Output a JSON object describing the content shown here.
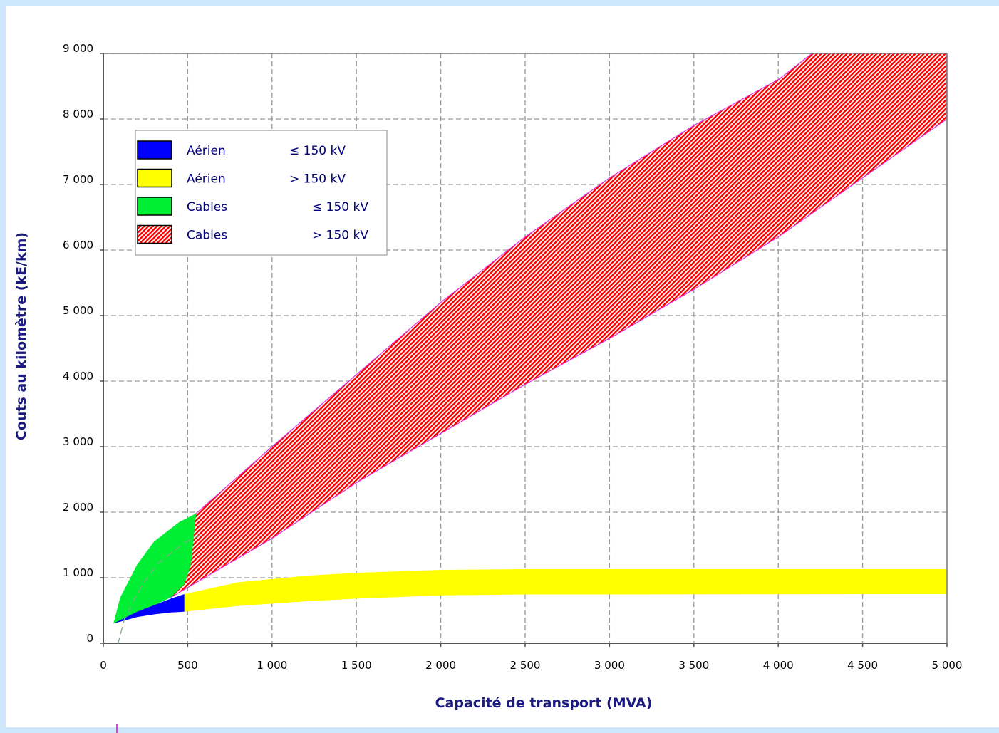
{
  "chart_data": {
    "type": "area",
    "xlabel": "Capacité de transport (MVA)",
    "ylabel": "Couts au kilomètre (kE/km)",
    "xlim": [
      0,
      5000
    ],
    "ylim": [
      0,
      9000
    ],
    "x_ticks": [
      "0",
      "500",
      "1 000",
      "1 500",
      "2 000",
      "2 500",
      "3 000",
      "3 500",
      "4 000",
      "4 500",
      "5 000"
    ],
    "y_ticks": [
      "0",
      "1 000",
      "2 000",
      "3 000",
      "4 000",
      "5 000",
      "6 000",
      "7 000",
      "8 000",
      "9 000"
    ],
    "grid": true,
    "legend_position": "top-left",
    "legend": [
      {
        "label": "Aérien",
        "condition": "≤ 150 kV",
        "color": "#0000ff",
        "pattern": "solid"
      },
      {
        "label": "Aérien",
        "condition": "> 150 kV",
        "color": "#ffff00",
        "pattern": "solid"
      },
      {
        "label": "Cables",
        "condition": "≤ 150 kV",
        "color": "#00ee33",
        "pattern": "solid"
      },
      {
        "label": "Cables",
        "condition": "> 150 kV",
        "color": "#ff0000",
        "pattern": "hatched"
      }
    ],
    "series": [
      {
        "name": "Aérien ≤ 150 kV",
        "color": "#0000ff",
        "upper": [
          [
            60,
            300
          ],
          [
            200,
            480
          ],
          [
            300,
            580
          ],
          [
            400,
            680
          ],
          [
            480,
            750
          ]
        ],
        "lower": [
          [
            60,
            300
          ],
          [
            200,
            400
          ],
          [
            300,
            440
          ],
          [
            400,
            470
          ],
          [
            480,
            480
          ]
        ]
      },
      {
        "name": "Aérien > 150 kV",
        "color": "#ffff00",
        "upper": [
          [
            480,
            750
          ],
          [
            800,
            930
          ],
          [
            1200,
            1030
          ],
          [
            1500,
            1075
          ],
          [
            2000,
            1120
          ],
          [
            2500,
            1130
          ],
          [
            5000,
            1130
          ]
        ],
        "lower": [
          [
            480,
            480
          ],
          [
            800,
            570
          ],
          [
            1200,
            640
          ],
          [
            1500,
            680
          ],
          [
            2000,
            730
          ],
          [
            2500,
            745
          ],
          [
            5000,
            750
          ]
        ]
      },
      {
        "name": "Cables ≤ 150 kV",
        "color": "#00ee33",
        "upper": [
          [
            60,
            300
          ],
          [
            100,
            700
          ],
          [
            200,
            1200
          ],
          [
            300,
            1550
          ],
          [
            450,
            1850
          ],
          [
            550,
            1980
          ]
        ],
        "lower": [
          [
            60,
            300
          ],
          [
            200,
            450
          ],
          [
            400,
            700
          ],
          [
            480,
            900
          ],
          [
            520,
            1200
          ],
          [
            550,
            1980
          ]
        ]
      },
      {
        "name": "Cables > 150 kV",
        "color": "#ff0000",
        "upper": [
          [
            550,
            1980
          ],
          [
            1000,
            3000
          ],
          [
            1500,
            4100
          ],
          [
            2000,
            5200
          ],
          [
            2500,
            6200
          ],
          [
            3000,
            7100
          ],
          [
            3500,
            7900
          ],
          [
            4000,
            8600
          ],
          [
            4200,
            9000
          ],
          [
            5000,
            9000
          ]
        ],
        "lower": [
          [
            400,
            700
          ],
          [
            500,
            850
          ],
          [
            1000,
            1600
          ],
          [
            1500,
            2450
          ],
          [
            2000,
            3200
          ],
          [
            2500,
            3950
          ],
          [
            3000,
            4650
          ],
          [
            3500,
            5400
          ],
          [
            4000,
            6200
          ],
          [
            4500,
            7100
          ],
          [
            5000,
            8000
          ]
        ]
      }
    ]
  }
}
